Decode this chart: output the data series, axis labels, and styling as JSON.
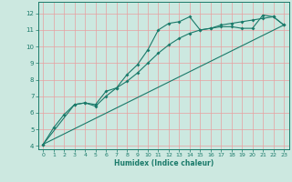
{
  "xlabel": "Humidex (Indice chaleur)",
  "bg_color": "#cce8e0",
  "line_color": "#1a7a6a",
  "grid_color": "#e8a0a0",
  "xlim": [
    -0.5,
    23.5
  ],
  "ylim": [
    3.8,
    12.7
  ],
  "xticks": [
    0,
    1,
    2,
    3,
    4,
    5,
    6,
    7,
    8,
    9,
    10,
    11,
    12,
    13,
    14,
    15,
    16,
    17,
    18,
    19,
    20,
    21,
    22,
    23
  ],
  "yticks": [
    4,
    5,
    6,
    7,
    8,
    9,
    10,
    11,
    12
  ],
  "line1_x": [
    0,
    1,
    2,
    3,
    4,
    5,
    6,
    7,
    8,
    9,
    10,
    11,
    12,
    13,
    14,
    15,
    16,
    17,
    18,
    19,
    20,
    21,
    22,
    23
  ],
  "line1_y": [
    4.1,
    5.1,
    5.9,
    6.5,
    6.6,
    6.5,
    7.3,
    7.5,
    8.3,
    8.9,
    9.8,
    11.0,
    11.4,
    11.5,
    11.8,
    11.0,
    11.1,
    11.2,
    11.2,
    11.1,
    11.1,
    11.9,
    11.8,
    11.3
  ],
  "line2_x": [
    0,
    3,
    4,
    5,
    6,
    7,
    8,
    9,
    10,
    11,
    12,
    13,
    14,
    15,
    16,
    17,
    18,
    19,
    20,
    21,
    22,
    23
  ],
  "line2_y": [
    4.1,
    6.5,
    6.6,
    6.4,
    7.0,
    7.5,
    7.9,
    8.4,
    9.0,
    9.6,
    10.1,
    10.5,
    10.8,
    11.0,
    11.1,
    11.3,
    11.4,
    11.5,
    11.6,
    11.7,
    11.8,
    11.3
  ],
  "line3_x": [
    0,
    23
  ],
  "line3_y": [
    4.1,
    11.3
  ]
}
